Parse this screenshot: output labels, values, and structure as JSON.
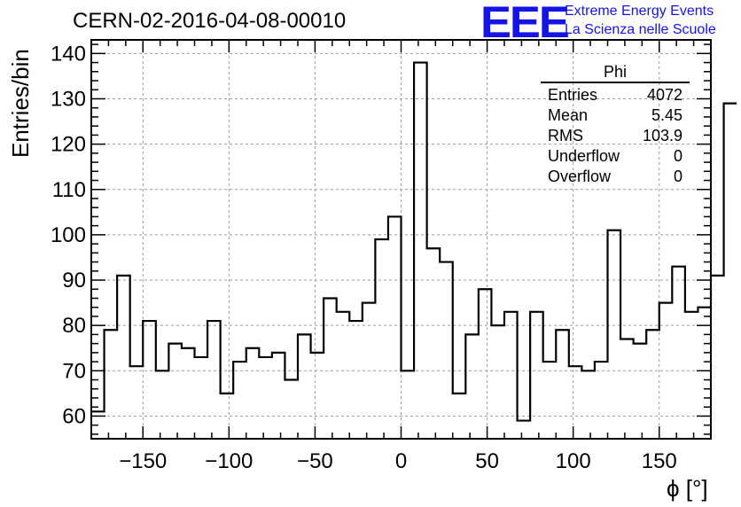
{
  "chart_data": {
    "type": "bar",
    "style": "step-histogram",
    "title": "CERN-02-2016-04-08-00010",
    "xlabel": "ϕ [°]",
    "ylabel": "Entries/bin",
    "xlim": [
      -180,
      180
    ],
    "ylim": [
      55,
      143
    ],
    "xticks": [
      -150,
      -100,
      -50,
      0,
      50,
      100,
      150
    ],
    "yticks": [
      60,
      70,
      80,
      90,
      100,
      110,
      120,
      130,
      140
    ],
    "grid": true,
    "bin_edges_start": -180,
    "bin_width": 7.5,
    "values": [
      61,
      79,
      91,
      71,
      81,
      70,
      76,
      75,
      73,
      81,
      65,
      72,
      75,
      73,
      74,
      68,
      78,
      74,
      86,
      83,
      81,
      85,
      99,
      104,
      70,
      138,
      97,
      94,
      65,
      78,
      88,
      80,
      83,
      59,
      83,
      72,
      79,
      71,
      70,
      72,
      101,
      77,
      76,
      79,
      85,
      93,
      83,
      84,
      91,
      129
    ],
    "line_color": "#000000"
  },
  "stats_box": {
    "title": "Phi",
    "rows": [
      {
        "label": "Entries",
        "value": "4072"
      },
      {
        "label": "Mean",
        "value": "5.45"
      },
      {
        "label": "RMS",
        "value": "103.9"
      },
      {
        "label": "Underflow",
        "value": "0"
      },
      {
        "label": "Overflow",
        "value": "0"
      }
    ]
  },
  "logo": {
    "text": "EEE",
    "line1": "Extreme Energy Events",
    "line2": "La Scienza nelle Scuole",
    "color": "#1414e6"
  }
}
